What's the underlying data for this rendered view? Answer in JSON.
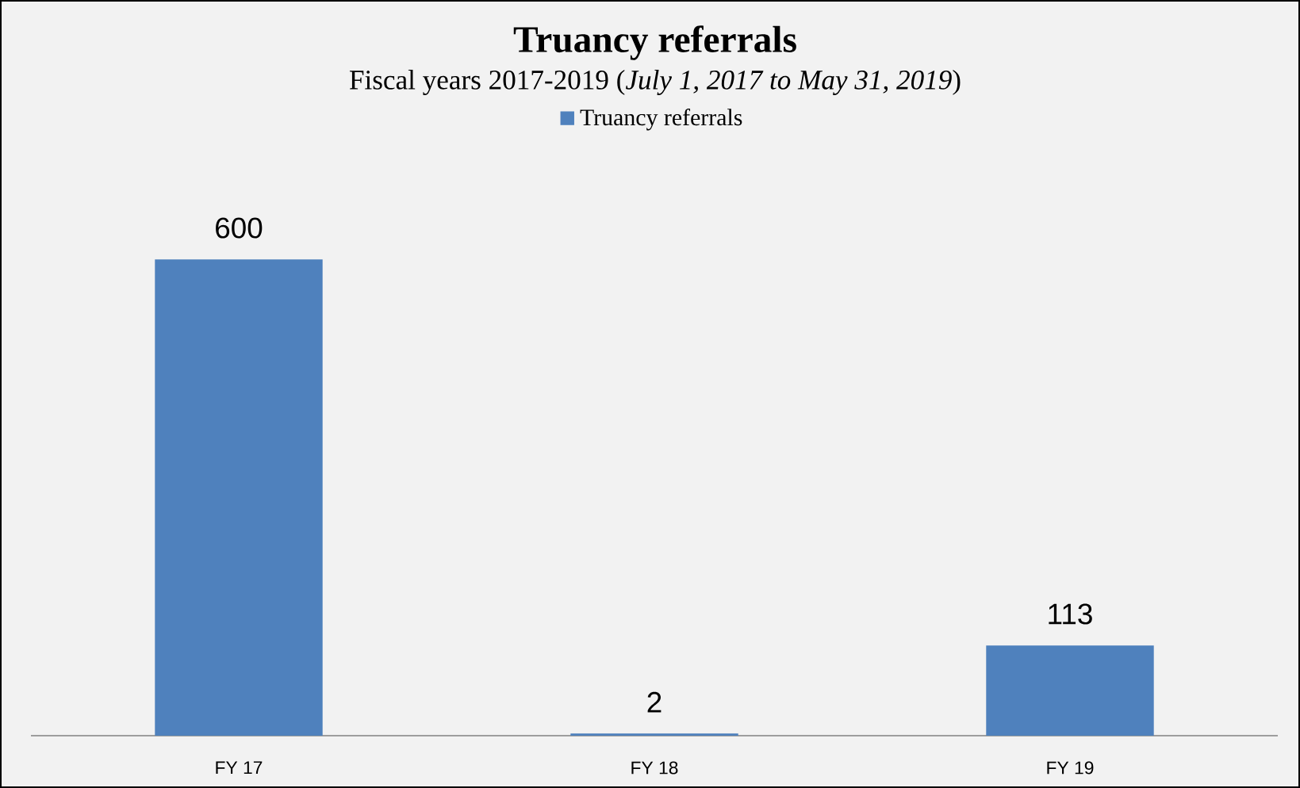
{
  "chart_data": {
    "type": "bar",
    "title": "Truancy referrals",
    "subtitle": "Fiscal years 2017-2019 (*July 1, 2017 to May 31, 2019*)",
    "categories": [
      "FY 17",
      "FY 18",
      "FY 19"
    ],
    "series": [
      {
        "name": "Truancy referrals",
        "color": "#4f81bd",
        "values": [
          600,
          2,
          113
        ]
      }
    ],
    "data_labels": true,
    "legend": "top"
  }
}
